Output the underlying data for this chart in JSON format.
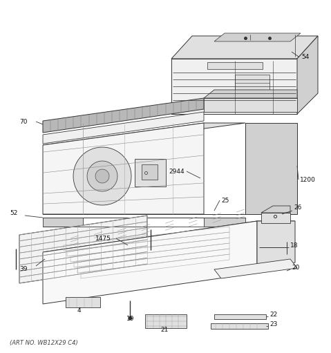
{
  "background_color": "#ffffff",
  "fig_width": 4.79,
  "fig_height": 5.11,
  "dpi": 100,
  "line_color": "#333333",
  "light_fill": "#f0f0f0",
  "mid_fill": "#e0e0e0",
  "dark_fill": "#d0d0d0",
  "hatch_fill": "#e8e8e8",
  "footer_text": "(ART NO. WB12X29 C4)",
  "label_fontsize": 6.5,
  "footer_fontsize": 6
}
